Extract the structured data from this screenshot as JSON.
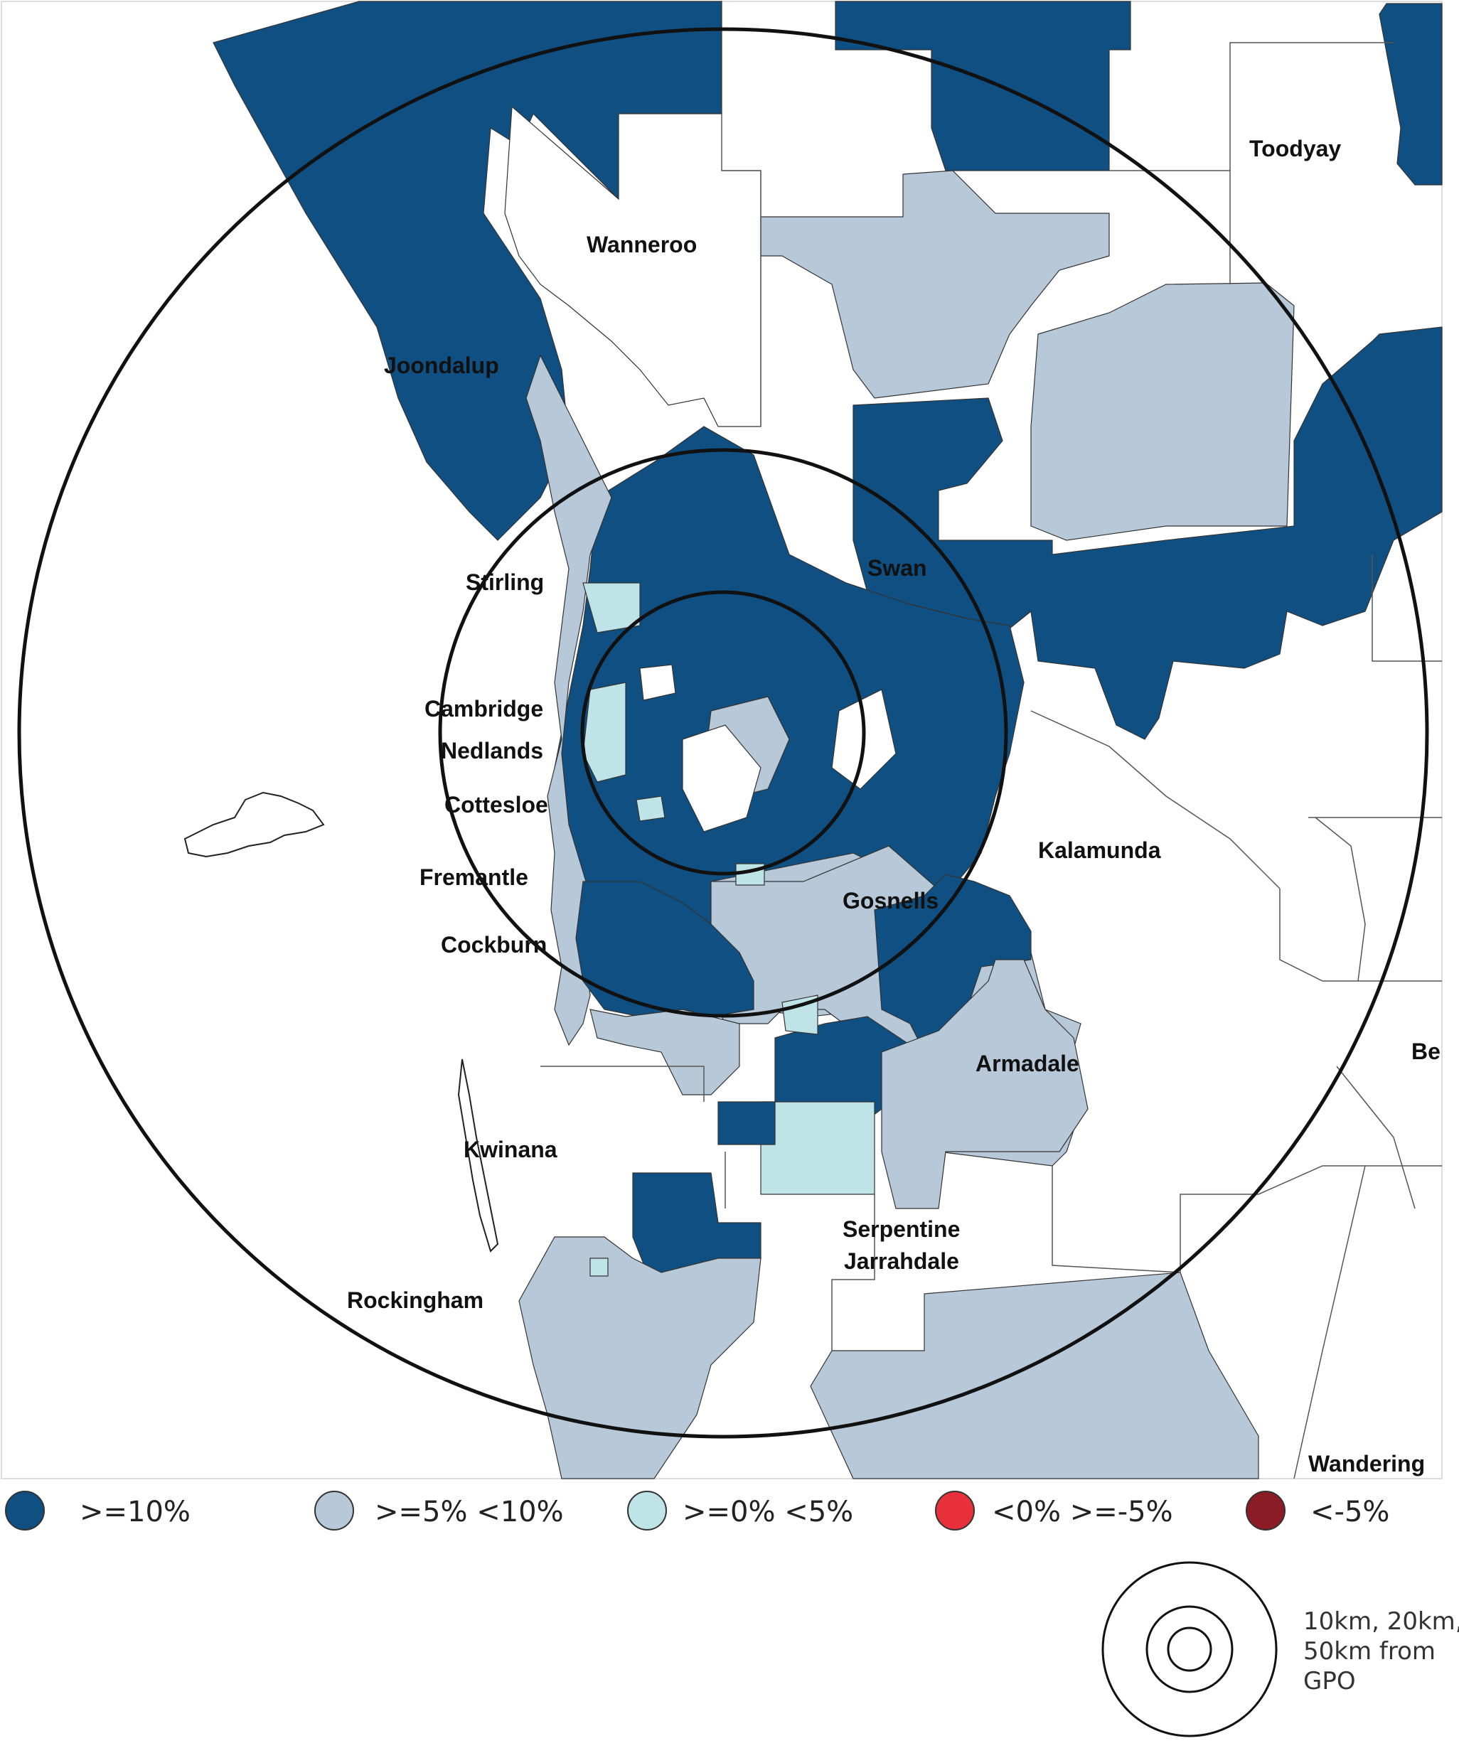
{
  "colors": {
    "ge10": "#0f4f82",
    "ge5lt10": "#b7c9d9",
    "ge0lt5": "#bfe4e8",
    "lt0ge_5": "#e8303a",
    "lt_5": "#8b1c26",
    "none": "#ffffff"
  },
  "places": {
    "toodyay": "Toodyay",
    "wanneroo": "Wanneroo",
    "joondalup": "Joondalup",
    "stirling": "Stirling",
    "swan": "Swan",
    "cambridge": "Cambridge",
    "nedlands": "Nedlands",
    "cottesloe": "Cottesloe",
    "fremantle": "Fremantle",
    "kalamunda": "Kalamunda",
    "gosnells": "Gosnells",
    "cockburn": "Cockburn",
    "armadale": "Armadale",
    "beverley_partial": "Be",
    "kwinana": "Kwinana",
    "serpentine": "Serpentine",
    "jarrahdale": "Jarrahdale",
    "rockingham": "Rockingham",
    "wandering": "Wandering"
  },
  "legend": [
    {
      "label": ">=10%",
      "color": "#0f4f82"
    },
    {
      "label": ">=5% <10%",
      "color": "#b7c9d9"
    },
    {
      "label": ">=0% <5%",
      "color": "#bfe4e8"
    },
    {
      "label": "<0% >=-5%",
      "color": "#e8303a"
    },
    {
      "label": "<-5%",
      "color": "#8b1c26"
    }
  ],
  "distance_key": {
    "line1": "10km, 20km,",
    "line2": "50km from",
    "line3": "GPO"
  }
}
